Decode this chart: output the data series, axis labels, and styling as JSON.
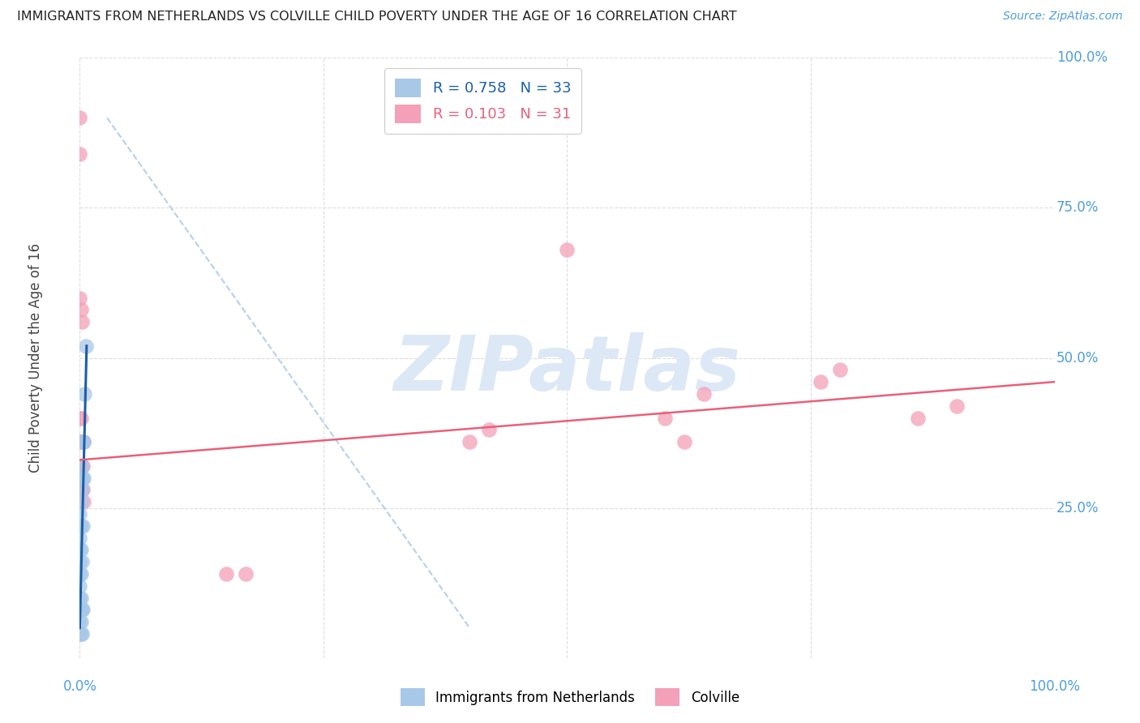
{
  "title": "IMMIGRANTS FROM NETHERLANDS VS COLVILLE CHILD POVERTY UNDER THE AGE OF 16 CORRELATION CHART",
  "source": "Source: ZipAtlas.com",
  "ylabel": "Child Poverty Under the Age of 16",
  "legend_r1": "R = 0.758",
  "legend_n1": "N = 33",
  "legend_r2": "R = 0.103",
  "legend_n2": "N = 31",
  "blue_color": "#a8c8e8",
  "pink_color": "#f4a0b8",
  "blue_line_color": "#1a5fa8",
  "pink_line_color": "#e8607a",
  "dashed_line_color": "#b8d0e8",
  "watermark_color": "#dce8f5",
  "axis_label_color": "#4d9de0",
  "title_color": "#222222",
  "blue_scatter": [
    [
      0.0,
      0.04
    ],
    [
      0.0,
      0.06
    ],
    [
      0.0,
      0.08
    ],
    [
      0.0,
      0.1
    ],
    [
      0.0,
      0.12
    ],
    [
      0.0,
      0.14
    ],
    [
      0.0,
      0.16
    ],
    [
      0.0,
      0.18
    ],
    [
      0.0,
      0.2
    ],
    [
      0.0,
      0.22
    ],
    [
      0.0,
      0.24
    ],
    [
      0.001,
      0.04
    ],
    [
      0.001,
      0.06
    ],
    [
      0.001,
      0.08
    ],
    [
      0.001,
      0.1
    ],
    [
      0.001,
      0.14
    ],
    [
      0.001,
      0.18
    ],
    [
      0.001,
      0.22
    ],
    [
      0.001,
      0.26
    ],
    [
      0.001,
      0.3
    ],
    [
      0.002,
      0.04
    ],
    [
      0.002,
      0.08
    ],
    [
      0.002,
      0.16
    ],
    [
      0.002,
      0.28
    ],
    [
      0.002,
      0.32
    ],
    [
      0.003,
      0.08
    ],
    [
      0.003,
      0.22
    ],
    [
      0.003,
      0.3
    ],
    [
      0.003,
      0.36
    ],
    [
      0.004,
      0.3
    ],
    [
      0.004,
      0.36
    ],
    [
      0.005,
      0.44
    ],
    [
      0.006,
      0.52
    ]
  ],
  "pink_scatter": [
    [
      0.0,
      0.32
    ],
    [
      0.0,
      0.36
    ],
    [
      0.0,
      0.4
    ],
    [
      0.0,
      0.6
    ],
    [
      0.0,
      0.84
    ],
    [
      0.0,
      0.9
    ],
    [
      0.001,
      0.32
    ],
    [
      0.001,
      0.36
    ],
    [
      0.001,
      0.4
    ],
    [
      0.001,
      0.58
    ],
    [
      0.002,
      0.28
    ],
    [
      0.002,
      0.32
    ],
    [
      0.002,
      0.36
    ],
    [
      0.002,
      0.56
    ],
    [
      0.003,
      0.28
    ],
    [
      0.003,
      0.32
    ],
    [
      0.003,
      0.36
    ],
    [
      0.004,
      0.26
    ],
    [
      0.004,
      0.36
    ],
    [
      0.15,
      0.14
    ],
    [
      0.17,
      0.14
    ],
    [
      0.4,
      0.36
    ],
    [
      0.42,
      0.38
    ],
    [
      0.5,
      0.68
    ],
    [
      0.6,
      0.4
    ],
    [
      0.62,
      0.36
    ],
    [
      0.64,
      0.44
    ],
    [
      0.76,
      0.46
    ],
    [
      0.78,
      0.48
    ],
    [
      0.86,
      0.4
    ],
    [
      0.9,
      0.42
    ]
  ],
  "blue_trend_x": [
    0.0,
    0.007
  ],
  "blue_trend_y": [
    0.05,
    0.52
  ],
  "pink_trend_x": [
    0.0,
    1.0
  ],
  "pink_trend_y": [
    0.33,
    0.46
  ],
  "dashed_trend_x": [
    0.028,
    0.4
  ],
  "dashed_trend_y": [
    0.9,
    0.05
  ],
  "xlim": [
    0.0,
    1.0
  ],
  "ylim": [
    0.0,
    1.0
  ]
}
